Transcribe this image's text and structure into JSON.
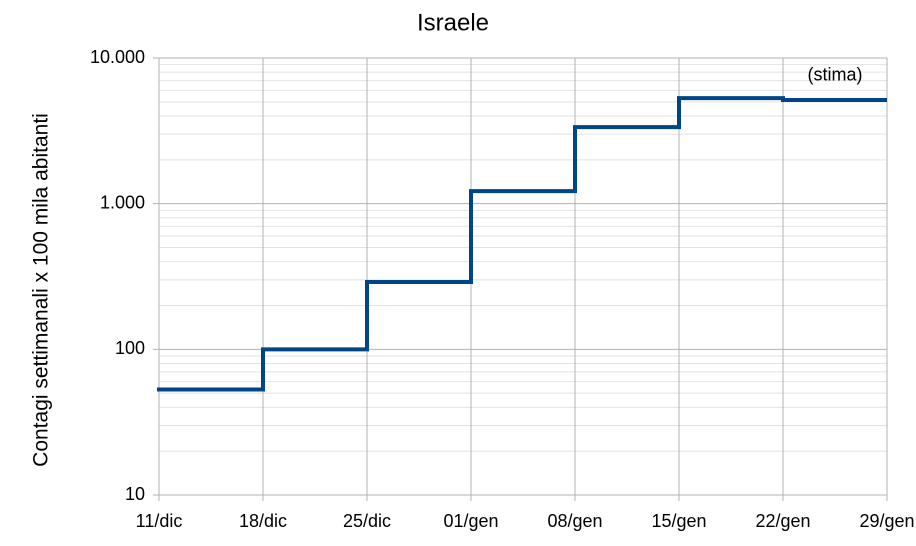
{
  "chart_data": {
    "type": "step",
    "title": "Israele",
    "y_label": "Contagi settimanali x 100 mila abitanti",
    "categories": [
      "11/dic",
      "18/dic",
      "25/dic",
      "01/gen",
      "08/gen",
      "15/gen",
      "22/gen",
      "29/gen"
    ],
    "series": [
      {
        "color": "#004586",
        "values": [
          53,
          100,
          290,
          1220,
          3350,
          5300,
          5150,
          null
        ]
      }
    ],
    "log_y": true,
    "ylim": [
      10,
      10000
    ],
    "yticks": [
      10,
      100,
      {
        "value": 1000,
        "label": "1.000"
      },
      {
        "value": 10000,
        "label": "10.000"
      }
    ],
    "grid": true,
    "minor_grid": true,
    "annotations": [
      {
        "text": "(stima)",
        "category": 6
      }
    ]
  }
}
